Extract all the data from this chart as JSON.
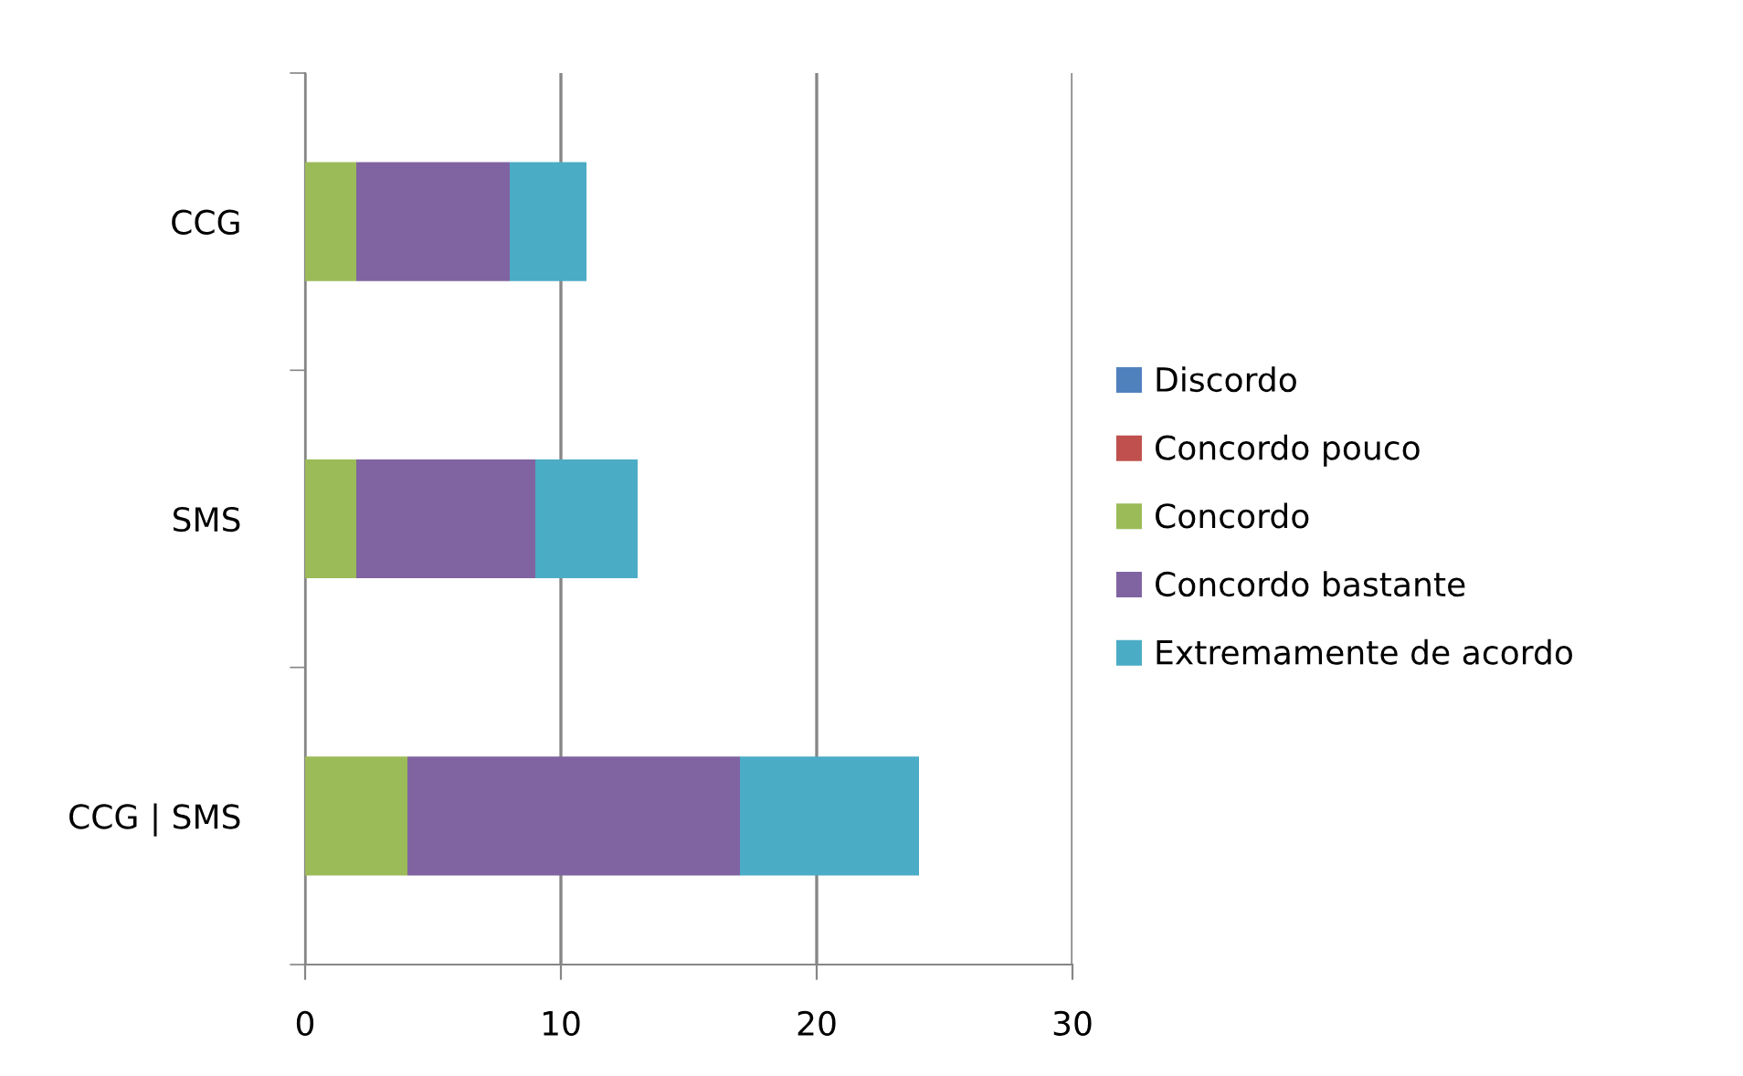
{
  "chart_data": {
    "type": "bar",
    "orientation": "horizontal",
    "stacked": true,
    "categories": [
      "CCG",
      "SMS",
      "CCG | SMS"
    ],
    "series": [
      {
        "name": "Discordo",
        "color": "#4f81bd",
        "values": [
          0,
          0,
          0
        ]
      },
      {
        "name": "Concordo pouco",
        "color": "#c0504d",
        "values": [
          0,
          0,
          0
        ]
      },
      {
        "name": "Concordo",
        "color": "#9bbb59",
        "values": [
          2,
          2,
          4
        ]
      },
      {
        "name": "Concordo bastante",
        "color": "#8064a2",
        "values": [
          6,
          7,
          13
        ]
      },
      {
        "name": "Extremamente de acordo",
        "color": "#4bacc6",
        "values": [
          3,
          4,
          7
        ]
      }
    ],
    "xlim": [
      0,
      30
    ],
    "xticks": [
      0,
      10,
      20,
      30
    ],
    "grid": "x",
    "legend": "right"
  }
}
